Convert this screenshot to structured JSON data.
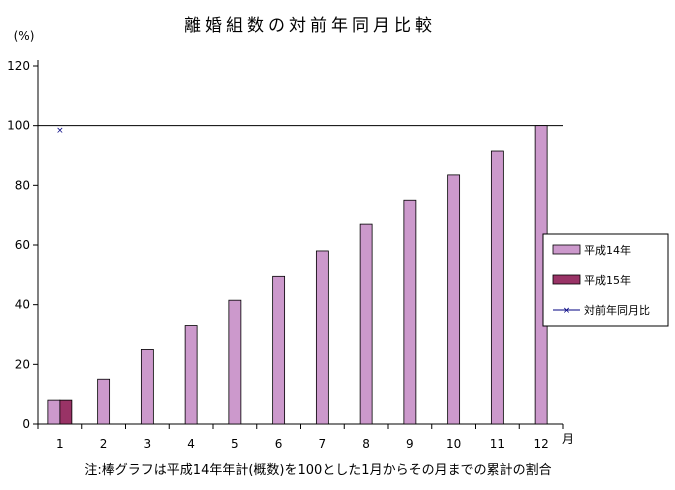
{
  "chart_data": {
    "type": "bar",
    "title": "離婚組数の対前年同月比較",
    "ylabel": "(%)",
    "xlabel": "月",
    "note": "注:棒グラフは平成14年年計(概数)を100とした1月からその月までの累計の割合",
    "categories": [
      "1",
      "2",
      "3",
      "4",
      "5",
      "6",
      "7",
      "8",
      "9",
      "10",
      "11",
      "12"
    ],
    "ylim": [
      0,
      120
    ],
    "yticks": [
      "0",
      "20",
      "40",
      "60",
      "80",
      "100",
      "120"
    ],
    "reference_line": 100,
    "series": [
      {
        "name": "平成14年",
        "color": "#cc99cc",
        "values": [
          8,
          15,
          25,
          33,
          41.5,
          49.5,
          58,
          67,
          75,
          83.5,
          91.5,
          100
        ]
      },
      {
        "name": "平成15年",
        "color": "#993366",
        "values": [
          8,
          null,
          null,
          null,
          null,
          null,
          null,
          null,
          null,
          null,
          null,
          null
        ]
      },
      {
        "name": "対前年同月比",
        "color": "#000080",
        "values": [
          98.5,
          null,
          null,
          null,
          null,
          null,
          null,
          null,
          null,
          null,
          null,
          null
        ]
      }
    ],
    "legend_position": "right"
  }
}
